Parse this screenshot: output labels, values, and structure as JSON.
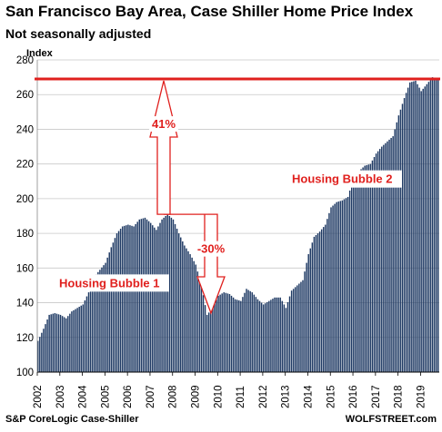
{
  "chart_data": {
    "type": "bar",
    "title": "San Francisco Bay Area, Case Shiller Home Price Index",
    "subtitle": "Not seasonally adjusted",
    "ylabel": "Index",
    "ylim": [
      100,
      280
    ],
    "yticks": [
      100,
      120,
      140,
      160,
      180,
      200,
      220,
      240,
      260,
      280
    ],
    "xlim": [
      2002.0,
      2019.83
    ],
    "xticks": [
      "2002",
      "2003",
      "2004",
      "2005",
      "2006",
      "2007",
      "2008",
      "2009",
      "2010",
      "2011",
      "2012",
      "2013",
      "2014",
      "2015",
      "2016",
      "2017",
      "2018",
      "2019"
    ],
    "grid": true,
    "series_color": "#1f3a64",
    "reference_line": {
      "value": 269,
      "color": "#e0201e"
    },
    "annotations": [
      {
        "text": "41%",
        "color": "#e0201e"
      },
      {
        "text": "-30%",
        "color": "#e0201e"
      },
      {
        "text": "Housing Bubble 1",
        "color": "#e0201e"
      },
      {
        "text": "Housing Bubble 2",
        "color": "#e0201e"
      }
    ],
    "keypoints": [
      [
        2002.0,
        118
      ],
      [
        2002.25,
        125
      ],
      [
        2002.5,
        133
      ],
      [
        2002.75,
        134
      ],
      [
        2003.0,
        133
      ],
      [
        2003.25,
        131
      ],
      [
        2003.5,
        135
      ],
      [
        2003.75,
        137
      ],
      [
        2004.0,
        139
      ],
      [
        2004.25,
        146
      ],
      [
        2004.5,
        155
      ],
      [
        2004.75,
        159
      ],
      [
        2005.0,
        163
      ],
      [
        2005.25,
        172
      ],
      [
        2005.5,
        180
      ],
      [
        2005.75,
        184
      ],
      [
        2006.0,
        185
      ],
      [
        2006.25,
        184
      ],
      [
        2006.5,
        188
      ],
      [
        2006.75,
        189
      ],
      [
        2007.0,
        186
      ],
      [
        2007.25,
        182
      ],
      [
        2007.5,
        188
      ],
      [
        2007.75,
        191
      ],
      [
        2008.0,
        188
      ],
      [
        2008.25,
        180
      ],
      [
        2008.5,
        173
      ],
      [
        2008.75,
        168
      ],
      [
        2009.0,
        162
      ],
      [
        2009.25,
        150
      ],
      [
        2009.5,
        133
      ],
      [
        2009.75,
        137
      ],
      [
        2010.0,
        144
      ],
      [
        2010.25,
        146
      ],
      [
        2010.5,
        145
      ],
      [
        2010.75,
        142
      ],
      [
        2011.0,
        141
      ],
      [
        2011.25,
        148
      ],
      [
        2011.5,
        146
      ],
      [
        2011.75,
        142
      ],
      [
        2012.0,
        139
      ],
      [
        2012.25,
        141
      ],
      [
        2012.5,
        143
      ],
      [
        2012.75,
        143
      ],
      [
        2013.0,
        137
      ],
      [
        2013.25,
        147
      ],
      [
        2013.5,
        150
      ],
      [
        2013.75,
        153
      ],
      [
        2014.0,
        168
      ],
      [
        2014.25,
        178
      ],
      [
        2014.5,
        181
      ],
      [
        2014.75,
        185
      ],
      [
        2015.0,
        195
      ],
      [
        2015.25,
        198
      ],
      [
        2015.5,
        199
      ],
      [
        2015.75,
        201
      ],
      [
        2016.0,
        212
      ],
      [
        2016.25,
        216
      ],
      [
        2016.5,
        219
      ],
      [
        2016.75,
        220
      ],
      [
        2017.0,
        226
      ],
      [
        2017.25,
        230
      ],
      [
        2017.5,
        233
      ],
      [
        2017.75,
        236
      ],
      [
        2018.0,
        248
      ],
      [
        2018.25,
        258
      ],
      [
        2018.5,
        267
      ],
      [
        2018.75,
        268
      ],
      [
        2019.0,
        262
      ],
      [
        2019.25,
        266
      ],
      [
        2019.5,
        270
      ],
      [
        2019.83,
        268
      ]
    ]
  },
  "footer": {
    "source": "S&P CoreLogic Case-Shiller",
    "brand": "WOLFSTREET.com"
  }
}
